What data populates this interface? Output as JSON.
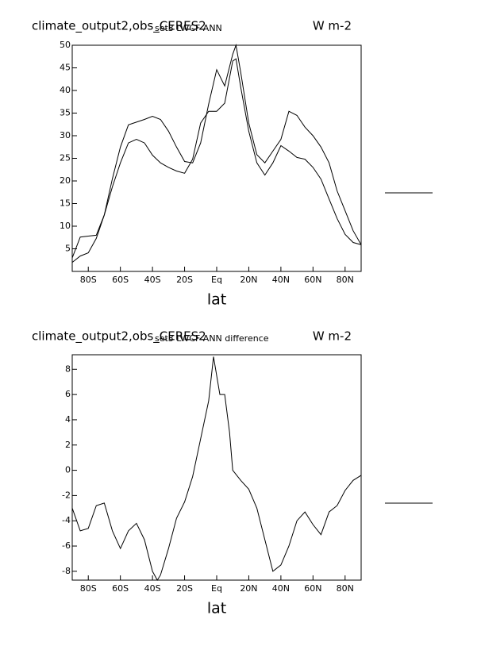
{
  "chart_data": [
    {
      "type": "line",
      "title": "climate_output2,obs_CERES2",
      "subtitle": "set3 LWCF ANN",
      "units": "W m-2",
      "xlabel": "lat",
      "x": [
        -90,
        -85,
        -80,
        -75,
        -70,
        -65,
        -60,
        -55,
        -50,
        -45,
        -40,
        -35,
        -30,
        -25,
        -20,
        -15,
        -10,
        -5,
        0,
        5,
        10,
        12,
        15,
        20,
        25,
        30,
        35,
        40,
        45,
        50,
        55,
        60,
        65,
        70,
        75,
        80,
        85,
        90
      ],
      "series": [
        {
          "color": "#000000",
          "values": [
            3,
            7.6,
            7.8,
            8,
            12.5,
            20.5,
            27.5,
            32.4,
            33,
            33.6,
            34.3,
            33.6,
            31,
            27.5,
            24.3,
            24,
            28.4,
            37,
            44.6,
            41,
            48,
            50,
            44,
            32.8,
            25.8,
            24,
            26.6,
            29.2,
            35.4,
            34.5,
            31.9,
            30,
            27.5,
            24,
            17.8,
            13.4,
            9,
            5.9
          ]
        },
        {
          "color": "#000000",
          "values": [
            2,
            3.4,
            4.1,
            7.3,
            12.5,
            18.7,
            24,
            28.4,
            29.2,
            28.4,
            25.7,
            24,
            23,
            22.2,
            21.7,
            24.8,
            32.8,
            35.4,
            35.4,
            37.2,
            46.5,
            47,
            40.7,
            31,
            24,
            21.3,
            24,
            27.8,
            26.6,
            25.2,
            24.8,
            23,
            20.4,
            16,
            11.7,
            8.2,
            6.4,
            5.9
          ]
        }
      ],
      "xlim": [
        -90,
        90
      ],
      "xticks": [
        {
          "value": -80,
          "label": "80S"
        },
        {
          "value": -60,
          "label": "60S"
        },
        {
          "value": -40,
          "label": "40S"
        },
        {
          "value": -20,
          "label": "20S"
        },
        {
          "value": 0,
          "label": "Eq"
        },
        {
          "value": 20,
          "label": "20N"
        },
        {
          "value": 40,
          "label": "40N"
        },
        {
          "value": 60,
          "label": "60N"
        },
        {
          "value": 80,
          "label": "80N"
        }
      ],
      "ylim": [
        0,
        50
      ],
      "yticks": [
        5,
        10,
        15,
        20,
        25,
        30,
        35,
        40,
        45,
        50
      ]
    },
    {
      "type": "line",
      "title": "climate_output2,obs_CERES2",
      "subtitle": "set3 LWCF ANN difference",
      "units": "W m-2",
      "xlabel": "lat",
      "x": [
        -90,
        -85,
        -80,
        -75,
        -70,
        -65,
        -60,
        -55,
        -50,
        -45,
        -40,
        -37,
        -35,
        -30,
        -25,
        -20,
        -15,
        -10,
        -5,
        -2,
        0,
        2,
        5,
        8,
        10,
        15,
        20,
        25,
        30,
        35,
        40,
        45,
        50,
        55,
        60,
        65,
        70,
        75,
        80,
        85,
        90
      ],
      "series": [
        {
          "color": "#000000",
          "values": [
            -3,
            -4.8,
            -4.6,
            -2.8,
            -2.6,
            -4.8,
            -6.2,
            -4.8,
            -4.2,
            -5.5,
            -8,
            -8.7,
            -8.3,
            -6.2,
            -3.8,
            -2.5,
            -0.5,
            2.5,
            5.5,
            9,
            7.5,
            6,
            6,
            3,
            0,
            -0.8,
            -1.5,
            -3,
            -5.5,
            -8,
            -7.5,
            -6,
            -4,
            -3.3,
            -4.3,
            -5.1,
            -3.3,
            -2.8,
            -1.6,
            -0.8,
            -0.4
          ]
        }
      ],
      "xlim": [
        -90,
        90
      ],
      "xticks": [
        {
          "value": -80,
          "label": "80S"
        },
        {
          "value": -60,
          "label": "60S"
        },
        {
          "value": -40,
          "label": "40S"
        },
        {
          "value": -20,
          "label": "20S"
        },
        {
          "value": 0,
          "label": "Eq"
        },
        {
          "value": 20,
          "label": "20N"
        },
        {
          "value": 40,
          "label": "40N"
        },
        {
          "value": 60,
          "label": "60N"
        },
        {
          "value": 80,
          "label": "80N"
        }
      ],
      "ylim": [
        -8.7,
        9.15
      ],
      "yticks": [
        -8,
        -6,
        -4,
        -2,
        0,
        2,
        4,
        6,
        8
      ]
    }
  ]
}
